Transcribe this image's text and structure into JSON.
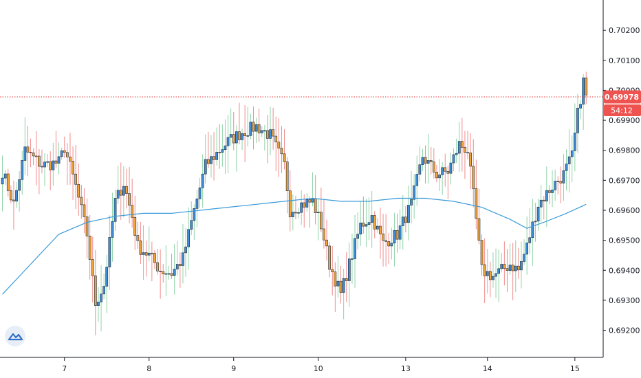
{
  "app": {
    "logo_icon": "tradingview-cloud-icon",
    "current_price": "0.69978",
    "countdown": "54:12"
  },
  "colors": {
    "bull_body": "#3f8fd8",
    "bear_body": "#f2a33a",
    "body_outline": "#1b2a38",
    "wick_bull": "#8fd3a8",
    "wick_bear": "#f08a8a",
    "ma_line": "#3a9ad9",
    "price_line": "#e53935",
    "price_tag_bg": "#ef5350",
    "axis_line": "#131722",
    "logo_bg": "#e8eef7",
    "logo_fg": "#2f6fc4"
  },
  "chart_data": {
    "type": "candlestick",
    "ylim": [
      0.6916,
      0.7026
    ],
    "y_ticks": [
      "0.70200",
      "0.70100",
      "0.70000",
      "0.69900",
      "0.69800",
      "0.69700",
      "0.69600",
      "0.69500",
      "0.69400",
      "0.69300",
      "0.69200"
    ],
    "x_ticks": [
      "7",
      "8",
      "9",
      "10",
      "13",
      "14",
      "15"
    ],
    "x_tick_bars": [
      22,
      52,
      82,
      112,
      143,
      172,
      203
    ],
    "bar_count": 208,
    "current_price": 0.69978,
    "keypoints": [
      [
        0,
        0.6973
      ],
      [
        4,
        0.6962
      ],
      [
        8,
        0.698
      ],
      [
        14,
        0.6975
      ],
      [
        20,
        0.6976
      ],
      [
        22,
        0.6981
      ],
      [
        26,
        0.6968
      ],
      [
        30,
        0.6952
      ],
      [
        33,
        0.6929
      ],
      [
        36,
        0.6935
      ],
      [
        40,
        0.6963
      ],
      [
        43,
        0.6969
      ],
      [
        46,
        0.6958
      ],
      [
        48,
        0.6948
      ],
      [
        52,
        0.6945
      ],
      [
        56,
        0.694
      ],
      [
        60,
        0.6939
      ],
      [
        64,
        0.6944
      ],
      [
        68,
        0.696
      ],
      [
        72,
        0.6975
      ],
      [
        75,
        0.6978
      ],
      [
        80,
        0.6983
      ],
      [
        85,
        0.6986
      ],
      [
        90,
        0.6988
      ],
      [
        95,
        0.6985
      ],
      [
        100,
        0.6975
      ],
      [
        102,
        0.696
      ],
      [
        106,
        0.6962
      ],
      [
        110,
        0.6963
      ],
      [
        113,
        0.6955
      ],
      [
        116,
        0.6942
      ],
      [
        120,
        0.6932
      ],
      [
        123,
        0.6942
      ],
      [
        127,
        0.6955
      ],
      [
        131,
        0.6958
      ],
      [
        135,
        0.6949
      ],
      [
        140,
        0.6952
      ],
      [
        145,
        0.6962
      ],
      [
        149,
        0.6978
      ],
      [
        154,
        0.6972
      ],
      [
        158,
        0.6973
      ],
      [
        162,
        0.6982
      ],
      [
        165,
        0.698
      ],
      [
        167,
        0.6965
      ],
      [
        170,
        0.694
      ],
      [
        174,
        0.6938
      ],
      [
        177,
        0.694
      ],
      [
        180,
        0.6942
      ],
      [
        183,
        0.694
      ],
      [
        186,
        0.6948
      ],
      [
        190,
        0.6962
      ],
      [
        195,
        0.6968
      ],
      [
        199,
        0.6972
      ],
      [
        202,
        0.6978
      ],
      [
        204,
        0.6992
      ],
      [
        206,
        0.7003
      ],
      [
        207,
        0.6998
      ]
    ],
    "ma_points": [
      [
        0,
        0.6932
      ],
      [
        10,
        0.6942
      ],
      [
        20,
        0.6952
      ],
      [
        30,
        0.6956
      ],
      [
        40,
        0.6958
      ],
      [
        50,
        0.6959
      ],
      [
        60,
        0.6959
      ],
      [
        70,
        0.696
      ],
      [
        80,
        0.6961
      ],
      [
        90,
        0.6962
      ],
      [
        100,
        0.6963
      ],
      [
        110,
        0.6964
      ],
      [
        120,
        0.6963
      ],
      [
        130,
        0.6963
      ],
      [
        140,
        0.6964
      ],
      [
        150,
        0.6964
      ],
      [
        160,
        0.6963
      ],
      [
        170,
        0.6961
      ],
      [
        180,
        0.6957
      ],
      [
        186,
        0.6954
      ],
      [
        192,
        0.6956
      ],
      [
        200,
        0.6959
      ],
      [
        207,
        0.6962
      ]
    ]
  }
}
